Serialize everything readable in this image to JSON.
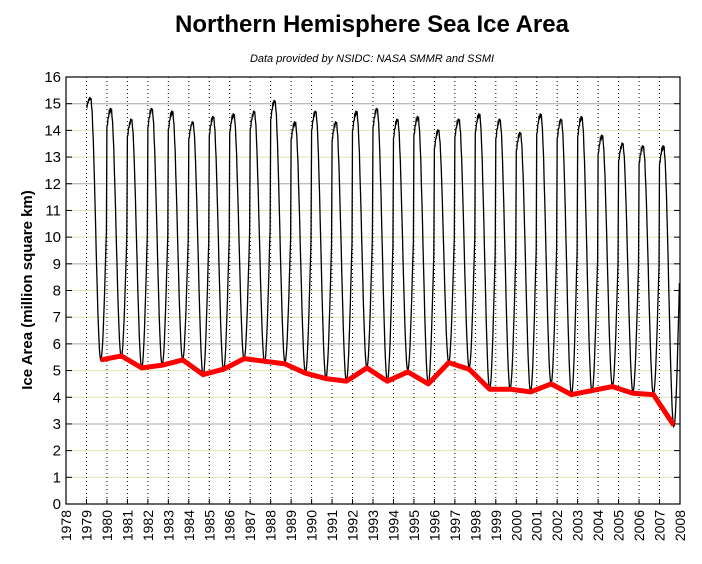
{
  "chart_data": {
    "type": "line",
    "title": "Northern Hemisphere Sea Ice Area",
    "subtitle": "Data provided by NSIDC: NASA SMMR and SSMI",
    "xlabel": "",
    "ylabel": "Ice Area (million square km)",
    "xlim": [
      1978,
      2008
    ],
    "ylim": [
      0,
      16
    ],
    "x_ticks": [
      "1978",
      "1979",
      "1980",
      "1981",
      "1982",
      "1983",
      "1984",
      "1985",
      "1986",
      "1987",
      "1988",
      "1989",
      "1990",
      "1991",
      "1992",
      "1993",
      "1994",
      "1995",
      "1996",
      "1997",
      "1998",
      "1999",
      "2000",
      "2001",
      "2002",
      "2003",
      "2004",
      "2005",
      "2006",
      "2007",
      "2008"
    ],
    "y_ticks": [
      "0",
      "1",
      "2",
      "3",
      "4",
      "5",
      "6",
      "7",
      "8",
      "9",
      "10",
      "11",
      "12",
      "13",
      "14",
      "15",
      "16"
    ],
    "grid": true,
    "series": [
      {
        "color": "#000000",
        "start_year": 1979,
        "annual_max": [
          15.2,
          14.8,
          14.4,
          14.8,
          14.7,
          14.3,
          14.5,
          14.6,
          14.7,
          15.1,
          14.3,
          14.7,
          14.3,
          14.7,
          14.8,
          14.4,
          14.5,
          14.0,
          14.4,
          14.6,
          14.4,
          13.9,
          14.6,
          14.4,
          14.5,
          13.8,
          13.5,
          13.4,
          13.4
        ],
        "annual_min": [
          5.4,
          5.5,
          5.1,
          5.2,
          5.4,
          4.8,
          5.0,
          5.4,
          5.3,
          5.3,
          4.9,
          4.7,
          4.6,
          5.1,
          4.6,
          5.0,
          4.5,
          5.3,
          5.1,
          4.3,
          4.3,
          4.2,
          4.5,
          4.1,
          4.2,
          4.4,
          4.2,
          4.1,
          2.9
        ]
      },
      {
        "color": "#ff0000",
        "x": [
          1979.7,
          1980.7,
          1981.7,
          1982.7,
          1983.7,
          1984.7,
          1985.7,
          1986.7,
          1987.7,
          1988.7,
          1989.7,
          1990.7,
          1991.7,
          1992.7,
          1993.7,
          1994.7,
          1995.7,
          1996.7,
          1997.7,
          1998.7,
          1999.7,
          2000.7,
          2001.7,
          2002.7,
          2003.7,
          2004.7,
          2005.7,
          2006.7,
          2007.7
        ],
        "values": [
          5.4,
          5.55,
          5.1,
          5.2,
          5.4,
          4.85,
          5.05,
          5.45,
          5.35,
          5.25,
          4.9,
          4.7,
          4.6,
          5.1,
          4.6,
          4.95,
          4.5,
          5.3,
          5.05,
          4.3,
          4.3,
          4.2,
          4.5,
          4.1,
          4.25,
          4.4,
          4.15,
          4.1,
          2.95
        ]
      }
    ]
  }
}
